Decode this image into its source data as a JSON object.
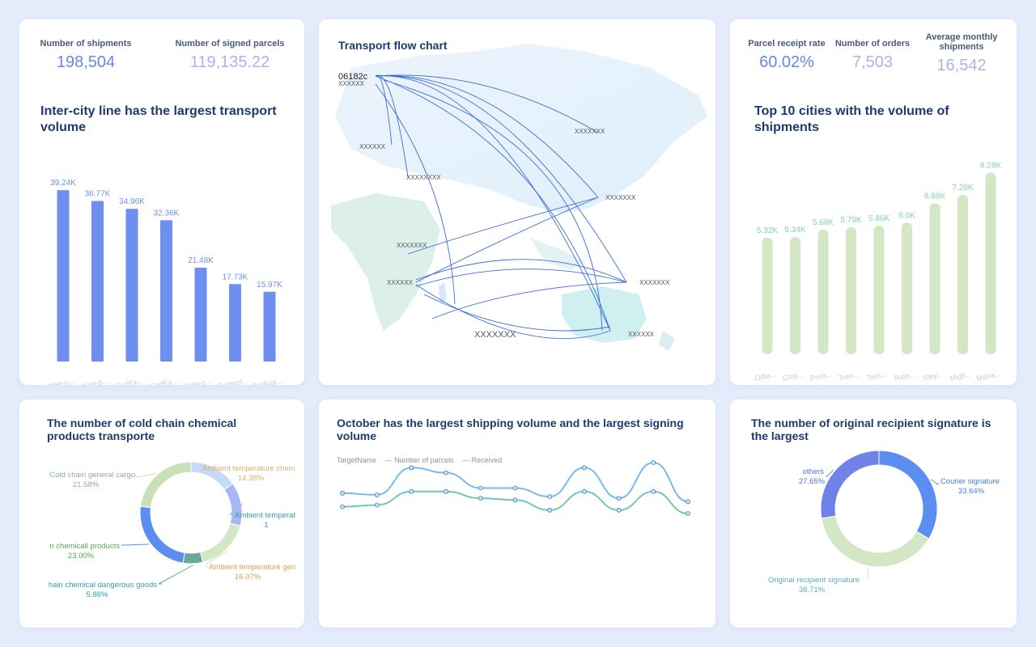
{
  "colors": {
    "page_bg": "#e4ecfb",
    "card_bg": "#ffffff",
    "title": "#1e3a6e",
    "bar_blue": "#6e8ff0",
    "bar_green": "#d4e7c5",
    "label_green": "#7fd8a8",
    "kpi_primary": "#6b85e0",
    "kpi_secondary": "#a9b4ee",
    "flow_line": "#3a6fd8"
  },
  "kpis_left": [
    {
      "label": "Number of shipments",
      "value": "198,504"
    },
    {
      "label": "Number of signed parcels",
      "value": "119,135.22"
    }
  ],
  "kpis_right": [
    {
      "label": "Parcel receipt rate",
      "value": "60.02%"
    },
    {
      "label": "Number of orders",
      "value": "7,503"
    },
    {
      "label": "Average monthly shipments",
      "value": "16,542"
    }
  ],
  "titles": {
    "bar_left": "Inter-city line has the largest transport volume",
    "map": "Transport flow chart",
    "bar_right": "Top 10 cities with the volume of shipments",
    "donut_cold": "The number of cold chain chemical products transporte",
    "line": "October has the largest shipping volume and the largest signing volume",
    "donut_sign": "The number of original recipient signature is the largest"
  },
  "map": {
    "icon": "world-map-icon",
    "origin_label": "06182c",
    "labels": [
      "XXXXXXX",
      "XXXXXXX",
      "XXXXXX",
      "XXXXXXXX",
      "XXXXXXX",
      "XXXXXX",
      "XXXXXX",
      "XXXXXXX",
      "XXXXXX",
      "XXXXXXX"
    ]
  },
  "line_legend": [
    "TargetName",
    "Number of parcels",
    "Received"
  ],
  "chart_data": [
    {
      "type": "bar",
      "categories": [
        "Inter-c...",
        "Non-d...",
        "FedEx...",
        "FedEx...",
        "Inter-c...",
        "Domest...",
        "Dedicat..."
      ],
      "values": [
        39.24,
        36.77,
        34.96,
        32.36,
        21.48,
        17.73,
        15.97
      ],
      "labels": [
        "39.24K",
        "36.77K",
        "34.96K",
        "32.36K",
        "21.48K",
        "17.73K",
        "15.97K"
      ],
      "ylim": [
        0,
        40
      ],
      "color": "#6e8ff0"
    },
    {
      "type": "bar",
      "categories": [
        "Odla...",
        "Char...",
        "Prea...",
        "Tren...",
        "Tarri...",
        "Rata...",
        "Stey...",
        "Migh...",
        "Mana..."
      ],
      "values": [
        5.32,
        5.34,
        5.68,
        5.79,
        5.86,
        6.0,
        6.88,
        7.26,
        8.28
      ],
      "labels": [
        "5.32K",
        "5.34K",
        "5.68K",
        "5.79K",
        "5.86K",
        "6.0K",
        "6.88K",
        "7.26K",
        "8.28K"
      ],
      "ylim": [
        0,
        9
      ],
      "color": "#d4e7c5"
    },
    {
      "type": "pie",
      "donut": true,
      "slices": [
        {
          "name": "Ambient temperature chem",
          "pct": "14.38%",
          "value": 14.38,
          "color": "#c6daf7",
          "label_color": "#e0b070"
        },
        {
          "name": "Ambient temperat",
          "pct": "1",
          "value": 13.0,
          "color": "#a8b6f3",
          "label_color": "#3a9aaa"
        },
        {
          "name": "Ambient temperature gen",
          "pct": "16.07%",
          "value": 16.07,
          "color": "#d4e7c5",
          "label_color": "#e0a050"
        },
        {
          "name": "hain chemical dangerous goods",
          "pct": "5.86%",
          "value": 5.86,
          "color": "#6aa89a",
          "label_color": "#3a9aaa"
        },
        {
          "name": "n chemicall products",
          "pct": "23.00%",
          "value": 23.0,
          "color": "#5b8ef0",
          "label_color": "#4caf50"
        },
        {
          "name": "Cold chain general cargo",
          "pct": "21.58%",
          "value": 21.58,
          "color": "#c9e1b8",
          "label_color": "#90b090"
        }
      ]
    },
    {
      "type": "line",
      "x": [
        1,
        2,
        3,
        4,
        5,
        6,
        7,
        8,
        9,
        10,
        11
      ],
      "series": [
        {
          "name": "Number of parcels",
          "values": [
            62,
            61,
            77,
            74,
            65,
            65,
            60,
            77,
            59,
            80,
            57
          ],
          "color": "#7ab8f2"
        },
        {
          "name": "Received",
          "values": [
            54,
            55,
            63,
            63,
            59,
            58,
            52,
            63,
            52,
            63,
            50
          ],
          "color": "#74c6b0"
        }
      ],
      "ylim": [
        0,
        100
      ]
    },
    {
      "type": "pie",
      "donut": true,
      "slices": [
        {
          "name": "Courier signature",
          "pct": "33.64%",
          "value": 33.64,
          "color": "#5b8ef0",
          "label_color": "#3d7fe0"
        },
        {
          "name": "Original recipient signature",
          "pct": "38.71%",
          "value": 38.71,
          "color": "#d4e7c5",
          "label_color": "#5ab0b8"
        },
        {
          "name": "others",
          "pct": "27.65%",
          "value": 27.65,
          "color": "#6e82e8",
          "label_color": "#5a6ee0"
        }
      ]
    }
  ]
}
